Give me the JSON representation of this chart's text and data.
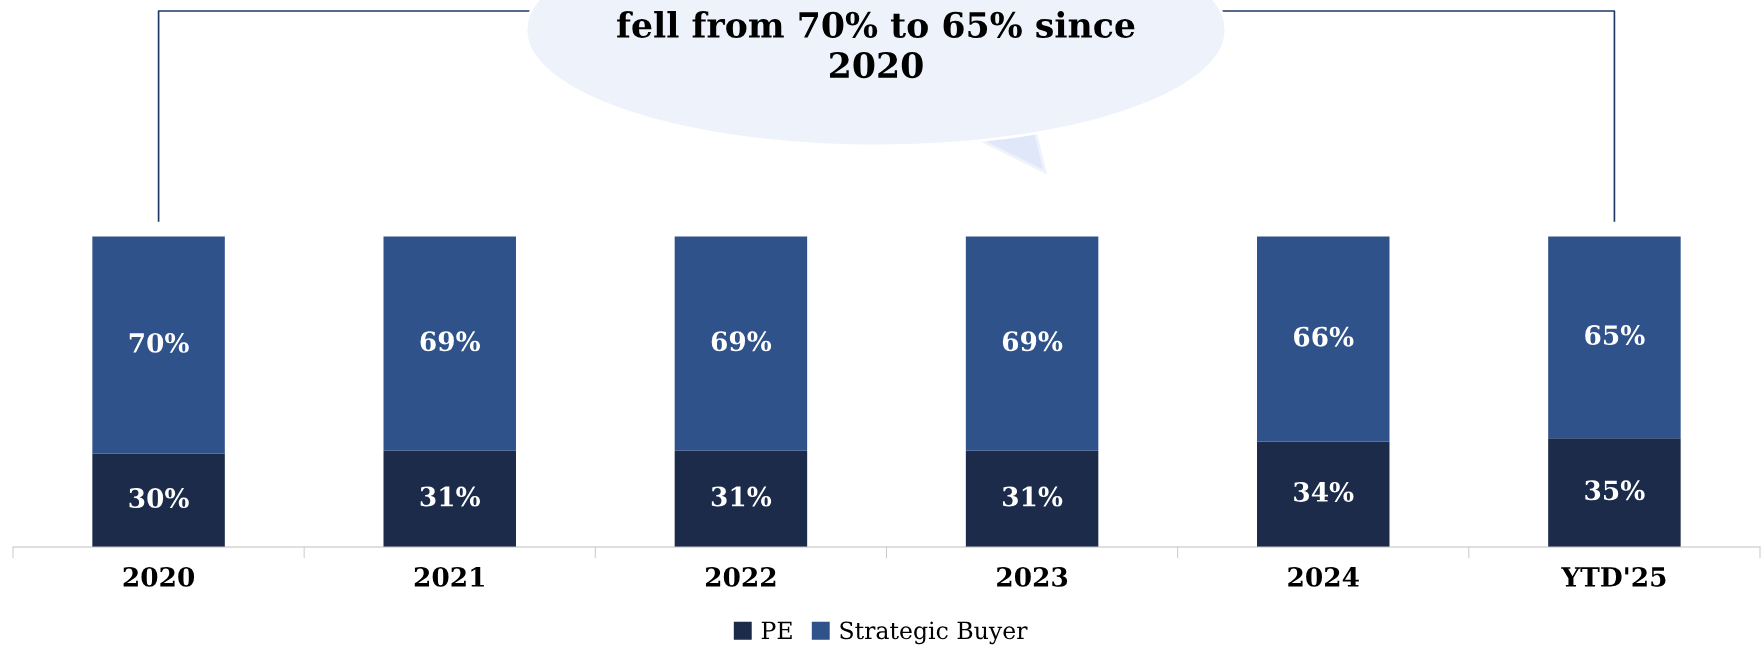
{
  "chart_data": {
    "type": "bar",
    "stacked": true,
    "legend": "bottom",
    "categories": [
      "2020",
      "2021",
      "2022",
      "2023",
      "2024",
      "YTD'25"
    ],
    "series": [
      {
        "name": "PE",
        "color": "#1c2b4a",
        "values": [
          30,
          31,
          31,
          31,
          34,
          35
        ],
        "value_labels": [
          "30%",
          "31%",
          "31%",
          "31%",
          "34%",
          "35%"
        ]
      },
      {
        "name": "Strategic Buyer",
        "color": "#2f528a",
        "values": [
          70,
          69,
          69,
          69,
          66,
          65
        ],
        "value_labels": [
          "70%",
          "69%",
          "69%",
          "69%",
          "66%",
          "65%"
        ]
      }
    ],
    "annotations": [
      "fell from 70% to 65% since 2020"
    ]
  }
}
